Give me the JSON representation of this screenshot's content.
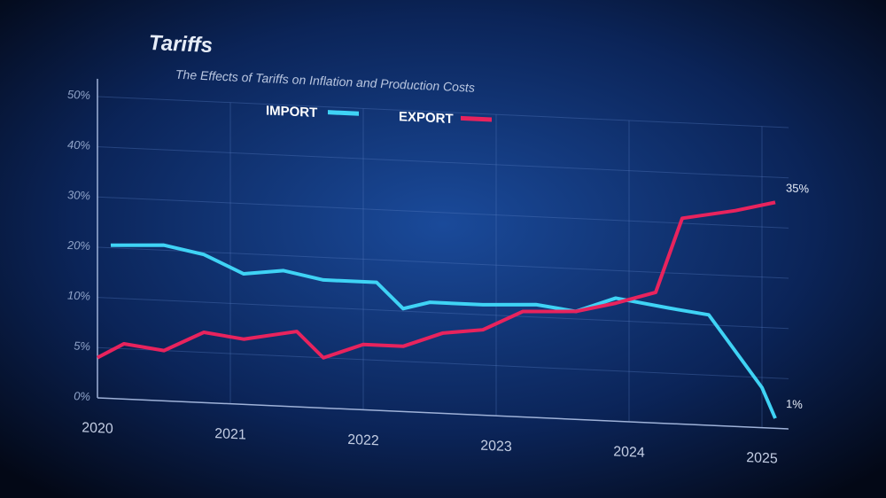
{
  "chart_data": {
    "type": "line",
    "title": "Tariffs",
    "subtitle": "The Effects of Tariffs on Inflation and Production Costs",
    "xlim": [
      2020,
      2025.2
    ],
    "xticks": [
      2020,
      2021,
      2022,
      2023,
      2024,
      2025
    ],
    "ylim": [
      0,
      50
    ],
    "yticks": [
      {
        "value": 0,
        "label": "0%"
      },
      {
        "value": 5,
        "label": "5%"
      },
      {
        "value": 10,
        "label": "10%"
      },
      {
        "value": 20,
        "label": "20%"
      },
      {
        "value": 30,
        "label": "30%"
      },
      {
        "value": 40,
        "label": "40%"
      },
      {
        "value": 50,
        "label": "50%"
      }
    ],
    "grid": true,
    "legend": "top",
    "series": [
      {
        "name": "IMPORT",
        "color": "#3fd3f5",
        "x": [
          2020.1,
          2020.5,
          2020.8,
          2021.1,
          2021.4,
          2021.7,
          2022.1,
          2022.3,
          2022.5,
          2022.9,
          2023.3,
          2023.6,
          2023.9,
          2024.3,
          2024.6,
          2025.0,
          2025.1
        ],
        "values": [
          20.5,
          21,
          19.5,
          16,
          17,
          15.5,
          15.5,
          10.5,
          12,
          12,
          12.5,
          11.5,
          14.5,
          13,
          12,
          4,
          1
        ],
        "value_labels": [
          null,
          null,
          null,
          null,
          null,
          null,
          null,
          null,
          null,
          null,
          null,
          null,
          null,
          null,
          null,
          null,
          "1%"
        ]
      },
      {
        "name": "EXPORT",
        "color": "#e8235d",
        "x": [
          2020.0,
          2020.2,
          2020.5,
          2020.8,
          2021.1,
          2021.5,
          2021.7,
          2022.0,
          2022.3,
          2022.6,
          2022.9,
          2023.2,
          2023.6,
          2023.9,
          2024.2,
          2024.4,
          2024.8,
          2025.1
        ],
        "values": [
          4,
          5.5,
          5,
          7,
          6.5,
          7.5,
          5,
          6.5,
          6.5,
          8,
          8.5,
          11,
          11.5,
          13.5,
          16,
          31,
          33,
          35
        ],
        "value_labels": [
          null,
          null,
          null,
          null,
          null,
          null,
          null,
          null,
          null,
          null,
          null,
          null,
          null,
          null,
          null,
          null,
          null,
          "35%"
        ]
      }
    ]
  }
}
